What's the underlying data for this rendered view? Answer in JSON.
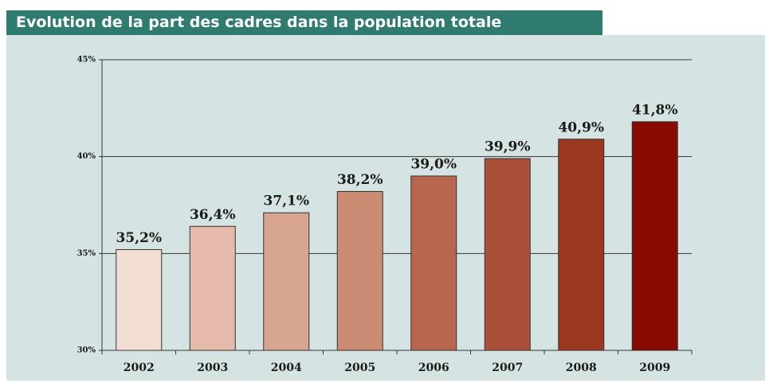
{
  "chart_data": {
    "type": "bar",
    "title": "Evolution de la part des cadres dans la population totale",
    "categories": [
      "2002",
      "2003",
      "2004",
      "2005",
      "2006",
      "2007",
      "2008",
      "2009"
    ],
    "values": [
      35.2,
      36.4,
      37.1,
      38.2,
      39.0,
      39.9,
      40.9,
      41.8
    ],
    "value_labels": [
      "35,2%",
      "36,4%",
      "37,1%",
      "38,2%",
      "39,0%",
      "39,9%",
      "40,9%",
      "41,8%"
    ],
    "colors": [
      "#f2ddd3",
      "#e5bcab",
      "#d8a690",
      "#cc8b73",
      "#b9664e",
      "#ab5038",
      "#9c3820",
      "#890a00"
    ],
    "ylim": [
      30,
      45
    ],
    "yticks": [
      {
        "value": 30,
        "label": "30%"
      },
      {
        "value": 35,
        "label": "35%"
      },
      {
        "value": 40,
        "label": "40%"
      },
      {
        "value": 45,
        "label": "45%"
      }
    ],
    "grid": true
  }
}
